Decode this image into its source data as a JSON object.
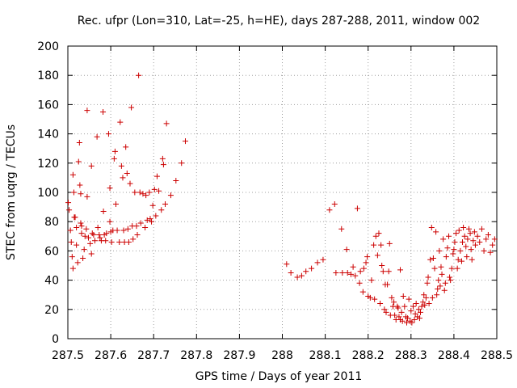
{
  "chart_data": {
    "type": "scatter",
    "title": "Rec. ufpr (Lon=310, Lat=-25, h=HE), days 287-288, 2011, window 002",
    "xlabel": "GPS time / Days of year 2011",
    "ylabel": "STEC from uqrg / TECUs",
    "xlim": [
      287.5,
      288.5
    ],
    "ylim": [
      0,
      200
    ],
    "xticks": [
      287.5,
      287.6,
      287.7,
      287.8,
      287.9,
      288.0,
      288.1,
      288.2,
      288.3,
      288.4,
      288.5
    ],
    "xtick_labels": [
      "287.5",
      "287.6",
      "287.7",
      "287.8",
      "287.9",
      "288",
      "288.1",
      "288.2",
      "288.3",
      "288.4",
      "288.5"
    ],
    "yticks": [
      0,
      20,
      40,
      60,
      80,
      100,
      120,
      140,
      160,
      180,
      200
    ],
    "ytick_labels": [
      "0",
      "20",
      "40",
      "60",
      "80",
      "100",
      "120",
      "140",
      "160",
      "180",
      "200"
    ],
    "grid": true,
    "marker": "+",
    "color": "#cc0000",
    "points": [
      [
        287.501,
        93
      ],
      [
        287.503,
        88
      ],
      [
        287.506,
        74
      ],
      [
        287.508,
        66
      ],
      [
        287.51,
        56
      ],
      [
        287.512,
        48
      ],
      [
        287.512,
        112
      ],
      [
        287.514,
        100
      ],
      [
        287.515,
        83
      ],
      [
        287.517,
        83
      ],
      [
        287.52,
        76
      ],
      [
        287.52,
        64
      ],
      [
        287.523,
        52
      ],
      [
        287.525,
        121
      ],
      [
        287.527,
        134
      ],
      [
        287.528,
        105
      ],
      [
        287.53,
        99
      ],
      [
        287.53,
        79
      ],
      [
        287.532,
        77
      ],
      [
        287.532,
        72
      ],
      [
        287.535,
        55
      ],
      [
        287.538,
        61
      ],
      [
        287.54,
        70
      ],
      [
        287.543,
        75
      ],
      [
        287.545,
        156
      ],
      [
        287.545,
        97
      ],
      [
        287.548,
        69
      ],
      [
        287.552,
        65
      ],
      [
        287.555,
        118
      ],
      [
        287.555,
        58
      ],
      [
        287.557,
        72
      ],
      [
        287.56,
        71
      ],
      [
        287.563,
        67
      ],
      [
        287.568,
        138
      ],
      [
        287.57,
        76
      ],
      [
        287.573,
        71
      ],
      [
        287.575,
        69
      ],
      [
        287.578,
        67
      ],
      [
        287.582,
        155
      ],
      [
        287.583,
        87
      ],
      [
        287.585,
        71
      ],
      [
        287.588,
        67
      ],
      [
        287.59,
        72
      ],
      [
        287.595,
        140
      ],
      [
        287.598,
        103
      ],
      [
        287.598,
        80
      ],
      [
        287.6,
        73
      ],
      [
        287.602,
        66
      ],
      [
        287.605,
        74
      ],
      [
        287.608,
        123
      ],
      [
        287.61,
        128
      ],
      [
        287.612,
        92
      ],
      [
        287.615,
        74
      ],
      [
        287.62,
        66
      ],
      [
        287.622,
        148
      ],
      [
        287.625,
        118
      ],
      [
        287.628,
        110
      ],
      [
        287.63,
        74
      ],
      [
        287.632,
        66
      ],
      [
        287.635,
        131
      ],
      [
        287.638,
        113
      ],
      [
        287.64,
        75
      ],
      [
        287.642,
        66
      ],
      [
        287.645,
        106
      ],
      [
        287.648,
        158
      ],
      [
        287.65,
        77
      ],
      [
        287.652,
        68
      ],
      [
        287.656,
        100
      ],
      [
        287.66,
        77
      ],
      [
        287.662,
        71
      ],
      [
        287.665,
        180
      ],
      [
        287.668,
        100
      ],
      [
        287.67,
        79
      ],
      [
        287.675,
        99
      ],
      [
        287.68,
        76
      ],
      [
        287.682,
        98
      ],
      [
        287.685,
        81
      ],
      [
        287.69,
        100
      ],
      [
        287.692,
        82
      ],
      [
        287.695,
        80
      ],
      [
        287.698,
        91
      ],
      [
        287.702,
        102
      ],
      [
        287.705,
        84
      ],
      [
        287.708,
        111
      ],
      [
        287.712,
        101
      ],
      [
        287.718,
        88
      ],
      [
        287.721,
        123
      ],
      [
        287.723,
        119
      ],
      [
        287.727,
        92
      ],
      [
        287.73,
        147
      ],
      [
        287.74,
        98
      ],
      [
        287.752,
        108
      ],
      [
        287.765,
        120
      ],
      [
        287.774,
        135
      ],
      [
        288.01,
        51
      ],
      [
        288.02,
        45
      ],
      [
        288.035,
        42
      ],
      [
        288.045,
        43
      ],
      [
        288.055,
        46
      ],
      [
        288.068,
        48
      ],
      [
        288.082,
        52
      ],
      [
        288.095,
        54
      ],
      [
        288.11,
        88
      ],
      [
        288.122,
        92
      ],
      [
        288.125,
        45
      ],
      [
        288.138,
        75
      ],
      [
        288.14,
        45
      ],
      [
        288.15,
        61
      ],
      [
        288.152,
        45
      ],
      [
        288.16,
        44
      ],
      [
        288.165,
        49
      ],
      [
        288.17,
        43
      ],
      [
        288.175,
        89
      ],
      [
        288.18,
        38
      ],
      [
        288.182,
        46
      ],
      [
        288.188,
        32
      ],
      [
        288.19,
        48
      ],
      [
        288.195,
        52
      ],
      [
        288.198,
        56
      ],
      [
        288.2,
        29
      ],
      [
        288.205,
        28
      ],
      [
        288.208,
        40
      ],
      [
        288.213,
        64
      ],
      [
        288.215,
        27
      ],
      [
        288.218,
        70
      ],
      [
        288.222,
        57
      ],
      [
        288.225,
        72
      ],
      [
        288.228,
        24
      ],
      [
        288.23,
        64
      ],
      [
        288.232,
        50
      ],
      [
        288.235,
        46
      ],
      [
        288.238,
        20
      ],
      [
        288.24,
        37
      ],
      [
        288.242,
        18
      ],
      [
        288.245,
        37
      ],
      [
        288.248,
        46
      ],
      [
        288.25,
        65
      ],
      [
        288.252,
        16
      ],
      [
        288.255,
        28
      ],
      [
        288.258,
        22
      ],
      [
        288.26,
        25
      ],
      [
        288.262,
        16
      ],
      [
        288.265,
        13
      ],
      [
        288.268,
        22
      ],
      [
        288.27,
        21
      ],
      [
        288.272,
        15
      ],
      [
        288.275,
        47
      ],
      [
        288.275,
        13
      ],
      [
        288.278,
        18
      ],
      [
        288.28,
        12
      ],
      [
        288.282,
        29
      ],
      [
        288.285,
        22
      ],
      [
        288.288,
        15
      ],
      [
        288.29,
        11
      ],
      [
        288.292,
        14
      ],
      [
        288.295,
        27
      ],
      [
        288.298,
        12
      ],
      [
        288.3,
        19
      ],
      [
        288.302,
        11
      ],
      [
        288.305,
        22
      ],
      [
        288.308,
        13
      ],
      [
        288.31,
        17
      ],
      [
        288.312,
        24
      ],
      [
        288.315,
        15
      ],
      [
        288.318,
        20
      ],
      [
        288.32,
        14
      ],
      [
        288.322,
        18
      ],
      [
        288.325,
        22
      ],
      [
        288.328,
        25
      ],
      [
        288.33,
        30
      ],
      [
        288.332,
        23
      ],
      [
        288.335,
        28
      ],
      [
        288.338,
        38
      ],
      [
        288.34,
        42
      ],
      [
        288.342,
        24
      ],
      [
        288.345,
        54
      ],
      [
        288.348,
        76
      ],
      [
        288.35,
        28
      ],
      [
        288.352,
        55
      ],
      [
        288.355,
        48
      ],
      [
        288.358,
        73
      ],
      [
        288.36,
        30
      ],
      [
        288.362,
        34
      ],
      [
        288.364,
        40
      ],
      [
        288.366,
        60
      ],
      [
        288.368,
        36
      ],
      [
        288.37,
        49
      ],
      [
        288.372,
        44
      ],
      [
        288.375,
        68
      ],
      [
        288.378,
        33
      ],
      [
        288.38,
        38
      ],
      [
        288.382,
        56
      ],
      [
        288.385,
        62
      ],
      [
        288.388,
        70
      ],
      [
        288.39,
        42
      ],
      [
        288.392,
        40
      ],
      [
        288.395,
        48
      ],
      [
        288.398,
        58
      ],
      [
        288.4,
        61
      ],
      [
        288.402,
        66
      ],
      [
        288.405,
        72
      ],
      [
        288.408,
        48
      ],
      [
        288.41,
        54
      ],
      [
        288.412,
        74
      ],
      [
        288.415,
        60
      ],
      [
        288.418,
        53
      ],
      [
        288.42,
        66
      ],
      [
        288.422,
        76
      ],
      [
        288.425,
        70
      ],
      [
        288.428,
        63
      ],
      [
        288.43,
        56
      ],
      [
        288.432,
        68
      ],
      [
        288.435,
        75
      ],
      [
        288.438,
        72
      ],
      [
        288.44,
        61
      ],
      [
        288.442,
        54
      ],
      [
        288.445,
        67
      ],
      [
        288.448,
        73
      ],
      [
        288.45,
        64
      ],
      [
        288.455,
        70
      ],
      [
        288.46,
        66
      ],
      [
        288.465,
        75
      ],
      [
        288.47,
        60
      ],
      [
        288.475,
        68
      ],
      [
        288.48,
        71
      ],
      [
        288.485,
        59
      ],
      [
        288.49,
        64
      ],
      [
        288.495,
        68
      ]
    ]
  }
}
